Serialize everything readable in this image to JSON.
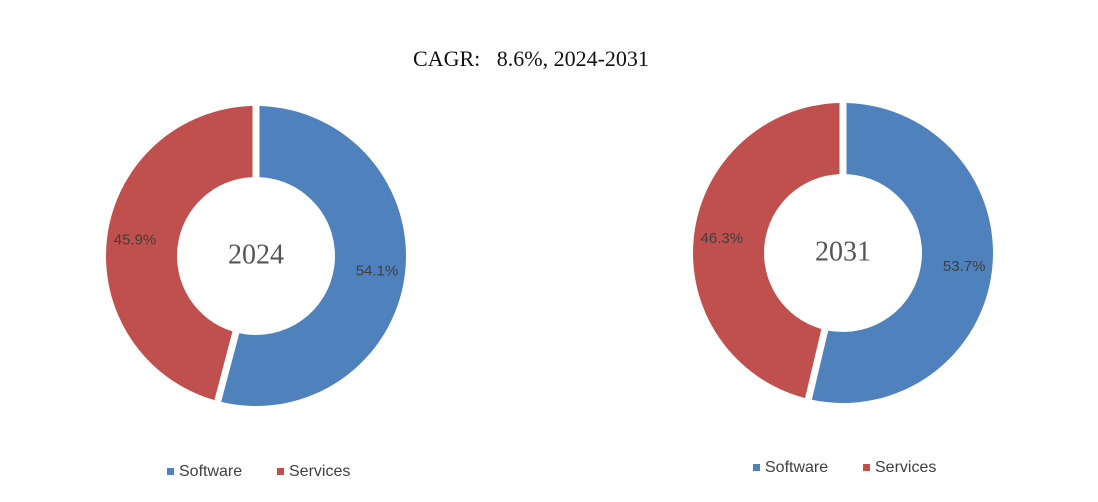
{
  "chart_data": [
    {
      "type": "pie",
      "variant": "donut",
      "title": "CAGR:   8.6%, 2024-2031",
      "center_label": "2024",
      "categories": [
        "Software",
        "Services"
      ],
      "values": [
        54.1,
        45.9
      ],
      "data_labels": [
        "54.1%",
        "45.9%"
      ],
      "colors": [
        "#4F81BD",
        "#C0504D"
      ],
      "legend": [
        "Software",
        "Services"
      ],
      "legend_position": "bottom"
    },
    {
      "type": "pie",
      "variant": "donut",
      "title": "CAGR:   8.6%, 2024-2031",
      "center_label": "2031",
      "categories": [
        "Software",
        "Services"
      ],
      "values": [
        53.7,
        46.3
      ],
      "data_labels": [
        "53.7%",
        "46.3%"
      ],
      "colors": [
        "#4F81BD",
        "#C0504D"
      ],
      "legend": [
        "Software",
        "Services"
      ],
      "legend_position": "bottom"
    }
  ]
}
